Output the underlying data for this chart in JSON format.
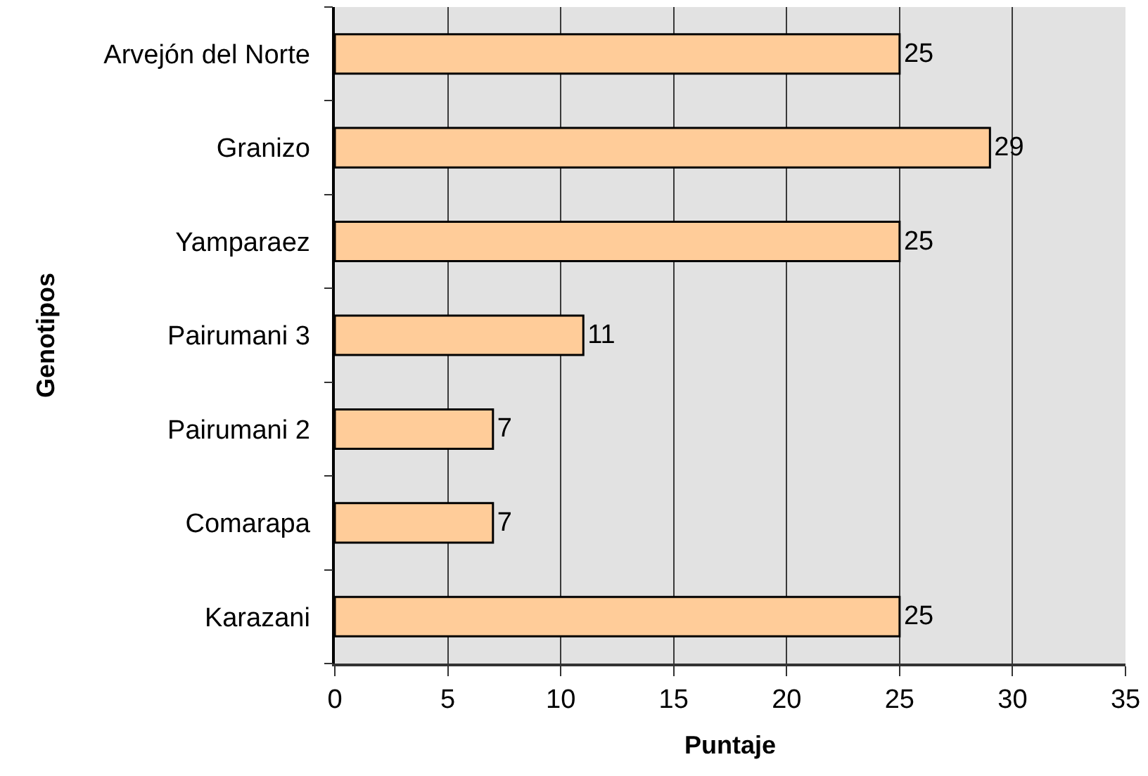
{
  "chart_data": {
    "type": "bar",
    "orientation": "horizontal",
    "xlabel": "Puntaje",
    "ylabel": "Genotipos",
    "categories": [
      "Arvejón del Norte",
      "Granizo",
      "Yamparaez",
      "Pairumani 3",
      "Pairumani 2",
      "Comarapa",
      "Karazani"
    ],
    "values": [
      25,
      29,
      25,
      11,
      7,
      7,
      25
    ],
    "color": "#ffcc99",
    "xlim": [
      0,
      35
    ],
    "xticks": [
      0,
      5,
      10,
      15,
      20,
      25,
      30,
      35
    ],
    "grid": "x",
    "data_labels": true
  }
}
